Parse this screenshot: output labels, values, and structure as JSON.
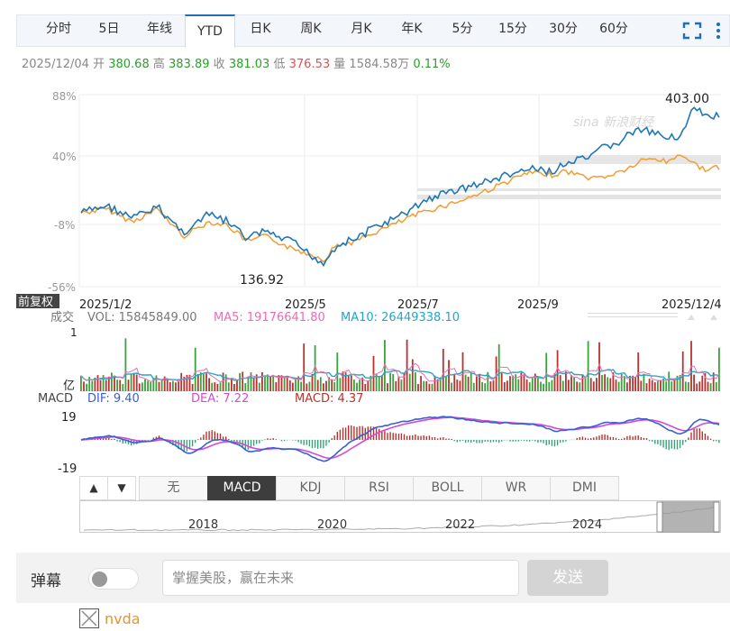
{
  "tabs": [
    {
      "label": "分时",
      "w": 56
    },
    {
      "label": "5日",
      "w": 56
    },
    {
      "label": "年线",
      "w": 56
    },
    {
      "label": "YTD",
      "w": 56,
      "active": true
    },
    {
      "label": "日K",
      "w": 56
    },
    {
      "label": "周K",
      "w": 56
    },
    {
      "label": "月K",
      "w": 56
    },
    {
      "label": "年K",
      "w": 56
    },
    {
      "label": "5分",
      "w": 56
    },
    {
      "label": "15分",
      "w": 56
    },
    {
      "label": "30分",
      "w": 56
    },
    {
      "label": "60分",
      "w": 56
    }
  ],
  "quote": {
    "date": "2025/12/04",
    "open_label": "开",
    "open": "380.68",
    "high_label": "高",
    "high": "383.89",
    "close_label": "收",
    "close": "381.03",
    "low_label": "低",
    "low": "376.53",
    "vol_label": "量",
    "vol": "1584.58万",
    "change": "0.11%"
  },
  "main_chart": {
    "y_ticks": [
      "88%",
      "40%",
      "-8%",
      "-56%"
    ],
    "x_ticks": [
      "2025/1/2",
      "2025/5",
      "2025/7",
      "2025/9",
      "2025/12/4"
    ],
    "max_label": "403.00",
    "min_label": "136.92",
    "watermark": "sina 新浪财经",
    "adjust_label": "前复权",
    "colors": {
      "stock": "#1f77b4",
      "index": "#f39c33"
    }
  },
  "volume": {
    "label": "成交",
    "vol_text": "VOL: 15845849.00",
    "ma5_text": "MA5: 19176641.80",
    "ma10_text": "MA10: 26449338.10",
    "top_tick": "1",
    "unit_tick": "亿",
    "colors": {
      "ma5": "#e66fb2",
      "ma10": "#22a7c6"
    }
  },
  "macd": {
    "label": "MACD",
    "dif_text": "DIF: 9.40",
    "dea_text": "DEA: 7.22",
    "macd_text": "MACD: 4.37",
    "top_tick": "19",
    "bottom_tick": "-19",
    "colors": {
      "dif": "#3a5fd1",
      "dea": "#d44ad4",
      "macd": "#b8322e"
    }
  },
  "indicator_tabs": {
    "up_arrow": "▲",
    "down_arrow": "▼",
    "items": [
      "无",
      "MACD",
      "KDJ",
      "RSI",
      "BOLL",
      "WR",
      "DMI"
    ],
    "active": "MACD"
  },
  "range": {
    "years": [
      "2018",
      "2020",
      "2022",
      "2024"
    ]
  },
  "danmu": {
    "label": "弹幕",
    "placeholder": "掌握美股，赢在未来",
    "send": "发送"
  },
  "compare": {
    "symbol": "nvda",
    "color": "#e8932e"
  }
}
